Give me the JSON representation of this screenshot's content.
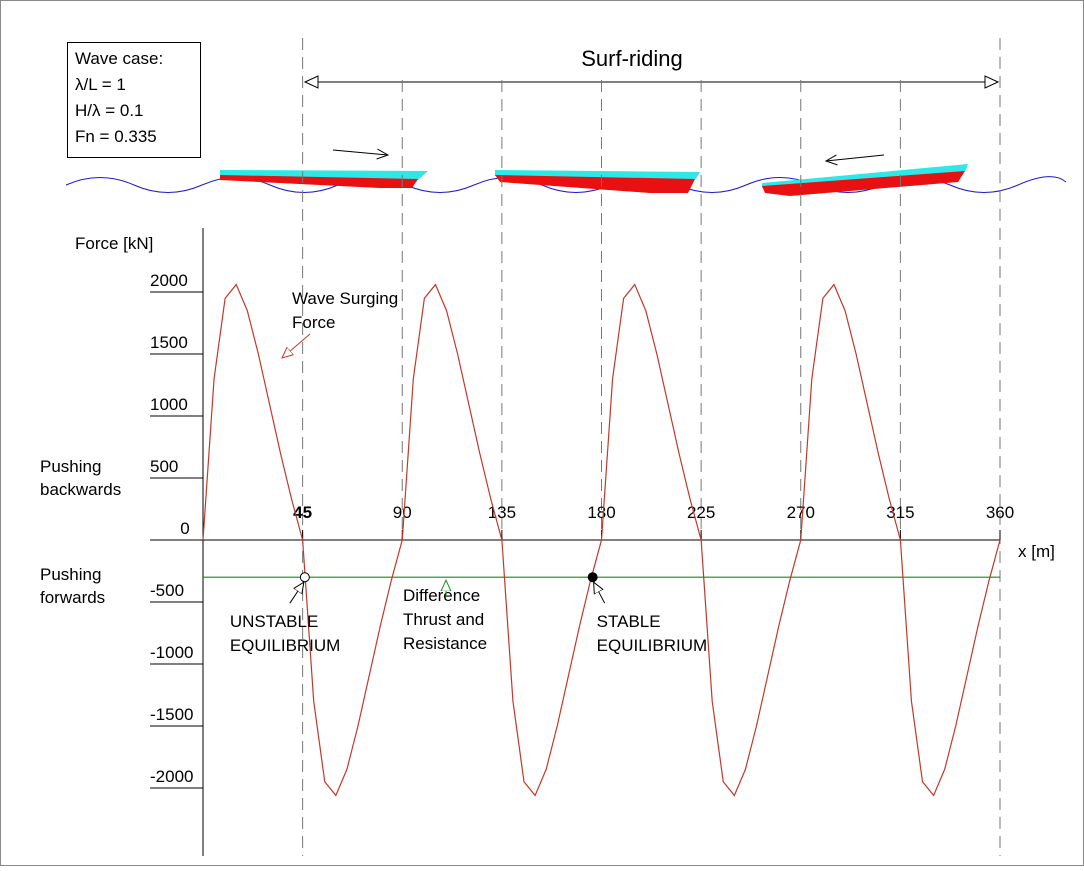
{
  "chart_data": {
    "type": "line",
    "case_box": [
      "Wave case:",
      "λ/L = 1",
      "H/λ = 0.1",
      "Fn = 0.335"
    ],
    "range_label": "Surf-riding",
    "y_label": "Force [kN]",
    "x_label": "x [m]",
    "side_labels": {
      "backwards": [
        "Pushing",
        "backwards"
      ],
      "forwards": [
        "Pushing",
        "forwards"
      ]
    },
    "xlim": [
      0,
      360
    ],
    "ylim": [
      -2000,
      2000
    ],
    "xticks": [
      45,
      90,
      135,
      180,
      225,
      270,
      315,
      360
    ],
    "yticks": [
      2000,
      1500,
      1000,
      500,
      0,
      -500,
      -1000,
      -1500,
      -2000
    ],
    "x": [
      0,
      5,
      10,
      15,
      20,
      25,
      30,
      35,
      40,
      45,
      50,
      55,
      60,
      65,
      70,
      75,
      80,
      85,
      90,
      95,
      100,
      105,
      110,
      115,
      120,
      125,
      130,
      135,
      140,
      145,
      150,
      155,
      160,
      165,
      170,
      175,
      180,
      185,
      190,
      195,
      200,
      205,
      210,
      215,
      220,
      225,
      230,
      235,
      240,
      245,
      250,
      255,
      260,
      265,
      270,
      275,
      280,
      285,
      290,
      295,
      300,
      305,
      310,
      315,
      320,
      325,
      330,
      335,
      340,
      345,
      350,
      355,
      360
    ],
    "series": [
      {
        "name": [
          "Wave Surging",
          "Force"
        ],
        "color": "#c0392b",
        "values": [
          0,
          1300,
          1950,
          2060,
          1850,
          1500,
          1100,
          700,
          330,
          0,
          -1300,
          -1950,
          -2060,
          -1850,
          -1500,
          -1100,
          -700,
          -330,
          0,
          1300,
          1950,
          2060,
          1850,
          1500,
          1100,
          700,
          330,
          0,
          -1300,
          -1950,
          -2060,
          -1850,
          -1500,
          -1100,
          -700,
          -330,
          0,
          1300,
          1950,
          2060,
          1850,
          1500,
          1100,
          700,
          330,
          0,
          -1300,
          -1950,
          -2060,
          -1850,
          -1500,
          -1100,
          -700,
          -330,
          0,
          1300,
          1950,
          2060,
          1850,
          1500,
          1100,
          700,
          330,
          0,
          -1300,
          -1950,
          -2060,
          -1850,
          -1500,
          -1100,
          -700,
          -330,
          0
        ]
      }
    ],
    "difference": {
      "name": [
        "Difference",
        "Thrust and",
        "Resistance"
      ],
      "color": "#1a8a1a",
      "value": -300
    },
    "equilibria": [
      {
        "x": 46,
        "y": -300,
        "label": [
          "UNSTABLE",
          "EQUILIBRIUM"
        ],
        "filled": false
      },
      {
        "x": 176,
        "y": -300,
        "label": [
          "STABLE",
          "EQUILIBRIUM"
        ],
        "filled": true
      }
    ]
  }
}
